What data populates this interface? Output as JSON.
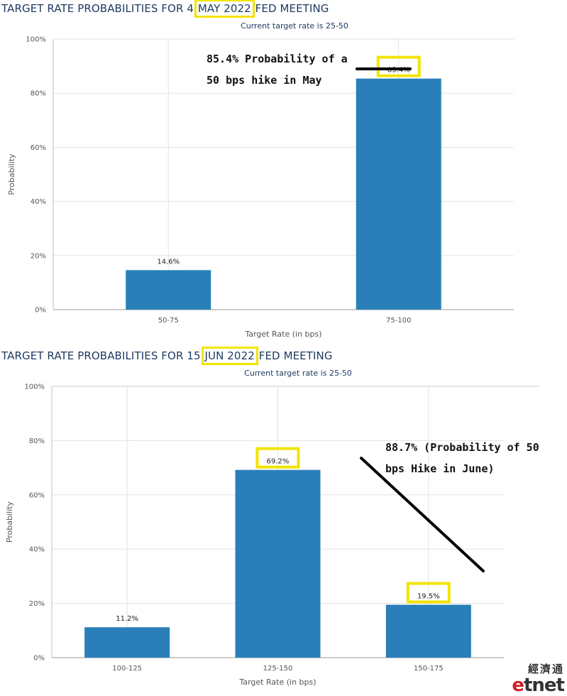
{
  "chart_data": [
    {
      "type": "bar",
      "title_parts": [
        "TARGET RATE PROBABILITIES FOR 4 ",
        "MAY 2022",
        " FED MEETING"
      ],
      "subtitle": "Current target rate is 25-50",
      "xlabel": "Target Rate (in bps)",
      "ylabel": "Probability",
      "yticks": [
        "0%",
        "20%",
        "40%",
        "60%",
        "80%",
        "100%"
      ],
      "ylim": [
        0,
        100
      ],
      "categories": [
        "50-75",
        "75-100"
      ],
      "values": [
        14.6,
        85.4
      ],
      "value_labels": [
        "14.6%",
        "85.4%"
      ],
      "highlighted": [
        false,
        true
      ],
      "annotation_lines": [
        "85.4% Probability of a",
        "50 bps hike in May"
      ],
      "bar_color": "#2a7fb8",
      "highlight_color": "#f2e400"
    },
    {
      "type": "bar",
      "title_parts": [
        "TARGET RATE PROBABILITIES FOR 15 ",
        "JUN 2022",
        " FED MEETING"
      ],
      "subtitle": "Current target rate is 25-50",
      "xlabel": "Target Rate (in bps)",
      "ylabel": "Probability",
      "yticks": [
        "0%",
        "20%",
        "40%",
        "60%",
        "80%",
        "100%"
      ],
      "ylim": [
        0,
        100
      ],
      "categories": [
        "100-125",
        "125-150",
        "150-175"
      ],
      "values": [
        11.2,
        69.2,
        19.5
      ],
      "value_labels": [
        "11.2%",
        "69.2%",
        "19.5%"
      ],
      "highlighted": [
        false,
        true,
        true
      ],
      "annotation_lines": [
        "88.7% (Probability of 50",
        "bps Hike in June)"
      ],
      "bar_color": "#2a7fb8",
      "highlight_color": "#f2e400"
    }
  ],
  "logo": {
    "top": "經濟通",
    "bottom_accent": "e",
    "bottom_rest": "tnet"
  }
}
